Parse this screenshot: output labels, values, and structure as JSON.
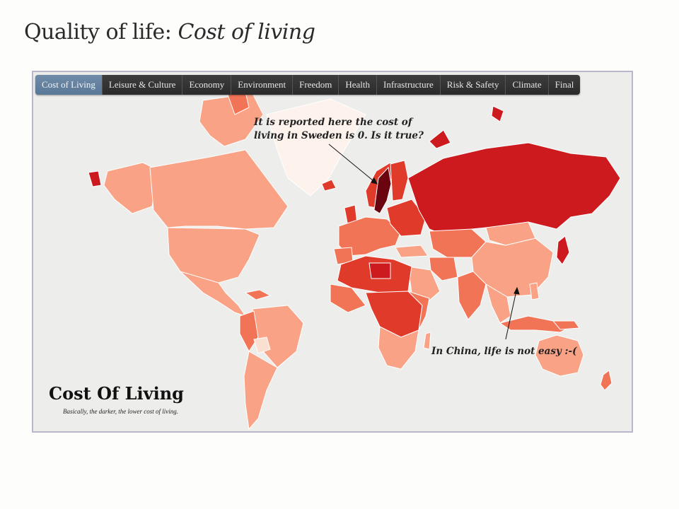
{
  "slide": {
    "title_prefix": "Quality of life: ",
    "title_emphasis": "Cost of living"
  },
  "tabs": [
    {
      "label": "Cost of Living",
      "active": true
    },
    {
      "label": "Leisure & Culture"
    },
    {
      "label": "Economy"
    },
    {
      "label": "Environment"
    },
    {
      "label": "Freedom"
    },
    {
      "label": "Health"
    },
    {
      "label": "Infrastructure"
    },
    {
      "label": "Risk & Safety"
    },
    {
      "label": "Climate"
    },
    {
      "label": "Final"
    }
  ],
  "map": {
    "legend_title": "Cost Of Living",
    "legend_subtitle": "Basically, the darker, the lower cost of living.",
    "colors": {
      "ocean": "#edeeec",
      "lightest": "#fbe0d2",
      "light": "#f9a285",
      "medium": "#f27456",
      "dark": "#e03a2b",
      "darker": "#cc1a1e",
      "darkest": "#6a0510"
    }
  },
  "annotations": {
    "sweden_line1": "It is reported here the cost of",
    "sweden_line2": "living in Sweden is 0. Is it true?",
    "china": "In China, life is not easy :-("
  }
}
